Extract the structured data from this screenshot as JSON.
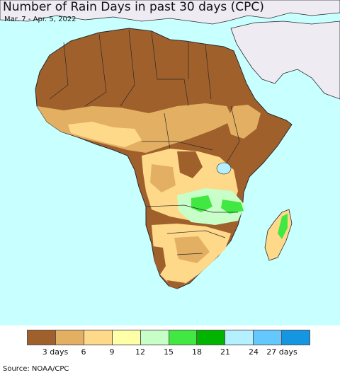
{
  "header": {
    "title": "Number of Rain Days in past 30 days (CPC)",
    "subtitle": "Mar. 7 - Apr. 5, 2022"
  },
  "map": {
    "region": "Africa",
    "ocean_color": "#c8ffff",
    "non_data_land_color": "#eeebf2",
    "border_color": "#2a2a2a"
  },
  "legend": {
    "colors": [
      "#a0602c",
      "#e3b063",
      "#ffd98a",
      "#ffffa8",
      "#c8ffc8",
      "#42e842",
      "#00b400",
      "#b4f0ff",
      "#64c8ff",
      "#1496e1"
    ],
    "labels": [
      {
        "text": "3 days",
        "index": 1
      },
      {
        "text": "6",
        "index": 2
      },
      {
        "text": "9",
        "index": 3
      },
      {
        "text": "12",
        "index": 4
      },
      {
        "text": "15",
        "index": 5
      },
      {
        "text": "18",
        "index": 6
      },
      {
        "text": "21",
        "index": 7
      },
      {
        "text": "24",
        "index": 8
      },
      {
        "text": "27 days",
        "index": 9
      }
    ]
  },
  "footer": {
    "source": "Source: NOAA/CPC"
  }
}
